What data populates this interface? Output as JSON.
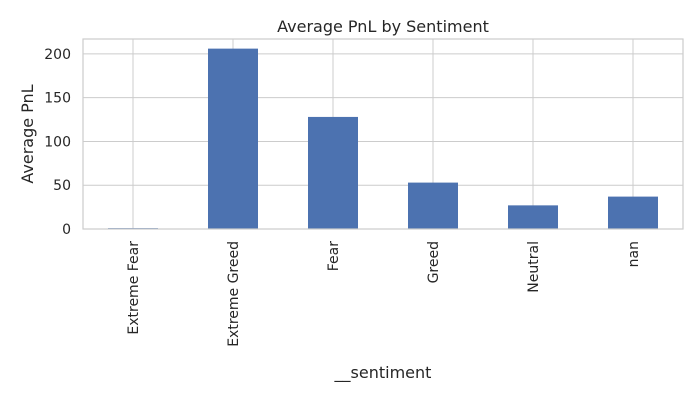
{
  "chart_data": {
    "type": "bar",
    "title": "Average PnL by Sentiment",
    "xlabel": "__sentiment",
    "ylabel": "Average PnL",
    "categories": [
      "Extreme Fear",
      "Extreme Greed",
      "Fear",
      "Greed",
      "Neutral",
      "nan"
    ],
    "values": [
      1,
      206,
      128,
      53,
      27,
      37
    ],
    "ylim": [
      0,
      217
    ],
    "yticks": [
      0,
      50,
      100,
      150,
      200
    ],
    "grid": true,
    "bar_color": "#4c72b0"
  }
}
